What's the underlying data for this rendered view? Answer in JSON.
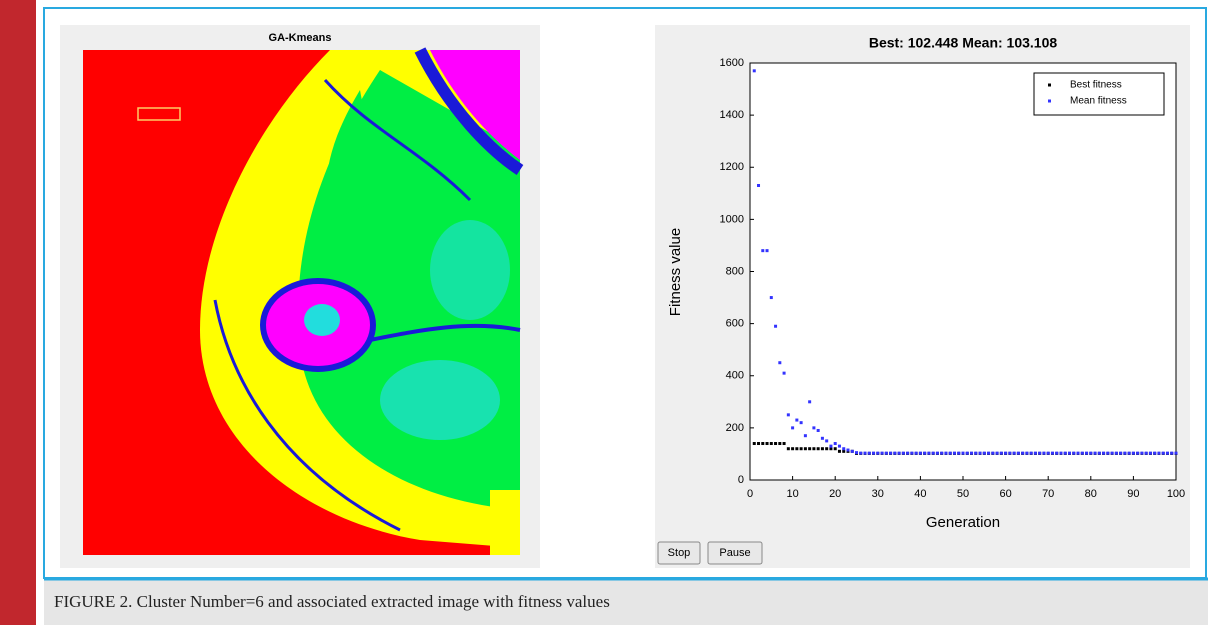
{
  "left_panel": {
    "title": "GA-Kmeans"
  },
  "chart_data": {
    "type": "scatter",
    "title": "Best: 102.448 Mean: 103.108",
    "x_label": "Generation",
    "y_label": "Fitness value",
    "x": [
      1,
      2,
      3,
      4,
      5,
      6,
      7,
      8,
      9,
      10,
      11,
      12,
      13,
      14,
      15,
      16,
      17,
      18,
      19,
      20,
      21,
      22,
      23,
      24,
      25,
      26,
      27,
      28,
      29,
      30,
      31,
      32,
      33,
      34,
      35,
      36,
      37,
      38,
      39,
      40,
      41,
      42,
      43,
      44,
      45,
      46,
      47,
      48,
      49,
      50,
      51,
      52,
      53,
      54,
      55,
      56,
      57,
      58,
      59,
      60,
      61,
      62,
      63,
      64,
      65,
      66,
      67,
      68,
      69,
      70,
      71,
      72,
      73,
      74,
      75,
      76,
      77,
      78,
      79,
      80,
      81,
      82,
      83,
      84,
      85,
      86,
      87,
      88,
      89,
      90,
      91,
      92,
      93,
      94,
      95,
      96,
      97,
      98,
      99,
      100
    ],
    "series": [
      {
        "name": "Best fitness",
        "color": "#000000",
        "values": [
          140,
          140,
          140,
          140,
          140,
          140,
          140,
          140,
          120,
          120,
          120,
          120,
          120,
          120,
          120,
          120,
          120,
          120,
          120,
          120,
          110,
          110,
          110,
          110,
          102,
          102,
          102,
          102,
          102,
          102,
          102,
          102,
          102,
          102,
          102,
          102,
          102,
          102,
          102,
          102,
          102,
          102,
          102,
          102,
          102,
          102,
          102,
          102,
          102,
          102,
          102,
          102,
          102,
          102,
          102,
          102,
          102,
          102,
          102,
          102,
          102,
          102,
          102,
          102,
          102,
          102,
          102,
          102,
          102,
          102,
          102,
          102,
          102,
          102,
          102,
          102,
          102,
          102,
          102,
          102,
          102,
          102,
          102,
          102,
          102,
          102,
          102,
          102,
          102,
          102,
          102,
          102,
          102,
          102,
          102,
          102,
          102,
          102,
          102,
          102
        ]
      },
      {
        "name": "Mean fitness",
        "color": "#3333ff",
        "values": [
          1570,
          1130,
          880,
          880,
          700,
          590,
          450,
          410,
          250,
          200,
          230,
          220,
          170,
          300,
          200,
          190,
          160,
          150,
          130,
          140,
          130,
          120,
          115,
          110,
          105,
          103,
          103,
          103,
          103,
          103,
          103,
          103,
          103,
          103,
          103,
          103,
          103,
          103,
          103,
          103,
          103,
          103,
          103,
          103,
          103,
          103,
          103,
          103,
          103,
          103,
          103,
          103,
          103,
          103,
          103,
          103,
          103,
          103,
          103,
          103,
          103,
          103,
          103,
          103,
          103,
          103,
          103,
          103,
          103,
          103,
          103,
          103,
          103,
          103,
          103,
          103,
          103,
          103,
          103,
          103,
          103,
          103,
          103,
          103,
          103,
          103,
          103,
          103,
          103,
          103,
          103,
          103,
          103,
          103,
          103,
          103,
          103,
          103,
          103,
          103
        ]
      }
    ],
    "xlim": [
      0,
      100
    ],
    "xticks": [
      0,
      10,
      20,
      30,
      40,
      50,
      60,
      70,
      80,
      90,
      100
    ],
    "ylim": [
      0,
      1600
    ],
    "yticks": [
      0,
      200,
      400,
      600,
      800,
      1000,
      1200,
      1400,
      1600
    ],
    "legend": "upper right"
  },
  "buttons": [
    "Stop",
    "Pause"
  ],
  "caption": "FIGURE 2. Cluster Number=6 and associated extracted image with fitness values"
}
